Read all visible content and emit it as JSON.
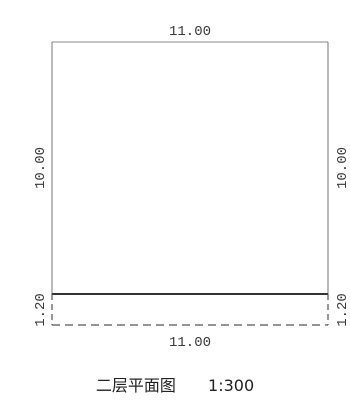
{
  "plan": {
    "top_width_label": "11.00",
    "bottom_width_label": "11.00",
    "left_room_label": "10.00",
    "right_room_label": "10.00",
    "left_balcony_label": "1.20",
    "right_balcony_label": "1.20"
  },
  "caption": {
    "title": "二层平面图",
    "scale": "1:300"
  }
}
